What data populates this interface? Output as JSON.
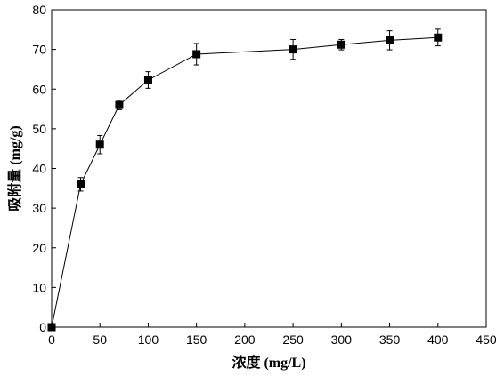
{
  "chart_data": {
    "type": "scatter",
    "xlabel": "浓度 (mg/L)",
    "ylabel": "吸附量 (mg/g)",
    "xlim": [
      0,
      450
    ],
    "ylim": [
      0,
      80
    ],
    "x_ticks": [
      0,
      50,
      100,
      150,
      200,
      250,
      300,
      350,
      400,
      450
    ],
    "y_ticks": [
      0,
      10,
      20,
      30,
      40,
      50,
      60,
      70,
      80
    ],
    "grid": false,
    "legend": "none",
    "marker": "square",
    "connected": true,
    "error_bars": true,
    "series": [
      {
        "points": [
          {
            "x": 0,
            "y": 0,
            "err": 0
          },
          {
            "x": 30,
            "y": 36,
            "err": 1.7
          },
          {
            "x": 50,
            "y": 46,
            "err": 2.3
          },
          {
            "x": 70,
            "y": 56,
            "err": 1.2
          },
          {
            "x": 100,
            "y": 62.3,
            "err": 2.1
          },
          {
            "x": 150,
            "y": 68.8,
            "err": 2.7
          },
          {
            "x": 250,
            "y": 70,
            "err": 2.5
          },
          {
            "x": 300,
            "y": 71.2,
            "err": 1.3
          },
          {
            "x": 350,
            "y": 72.3,
            "err": 2.4
          },
          {
            "x": 400,
            "y": 73,
            "err": 2.1
          }
        ]
      }
    ]
  }
}
